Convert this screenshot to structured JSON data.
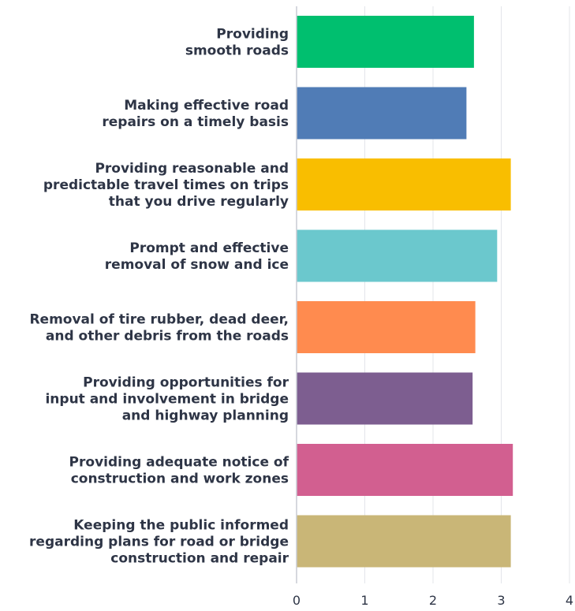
{
  "chart_data": {
    "type": "bar",
    "orientation": "horizontal",
    "categories": [
      [
        "Providing",
        "smooth roads"
      ],
      [
        "Making effective road",
        "repairs on a timely basis"
      ],
      [
        "Providing reasonable and",
        "predictable travel times on trips",
        "that you drive regularly"
      ],
      [
        "Prompt and effective",
        "removal of snow and ice"
      ],
      [
        "Removal of tire rubber, dead deer,",
        "and other debris from the roads"
      ],
      [
        "Providing opportunities for",
        "input and involvement in bridge",
        "and highway planning"
      ],
      [
        "Providing adequate notice of",
        "construction and work zones"
      ],
      [
        "Keeping the public informed",
        "regarding plans for road or bridge",
        "construction and repair"
      ]
    ],
    "values": [
      2.6,
      2.49,
      3.14,
      2.94,
      2.62,
      2.58,
      3.17,
      3.14
    ],
    "colors": [
      "#00bf6f",
      "#507cb6",
      "#f9be00",
      "#6bc8cd",
      "#ff8b4f",
      "#7d5e90",
      "#d25f90",
      "#c9b677"
    ],
    "xlim": [
      0,
      4
    ],
    "xticks": [
      "0",
      "1",
      "2",
      "3",
      "4"
    ],
    "grid": true,
    "title": "",
    "xlabel": "",
    "ylabel": ""
  }
}
